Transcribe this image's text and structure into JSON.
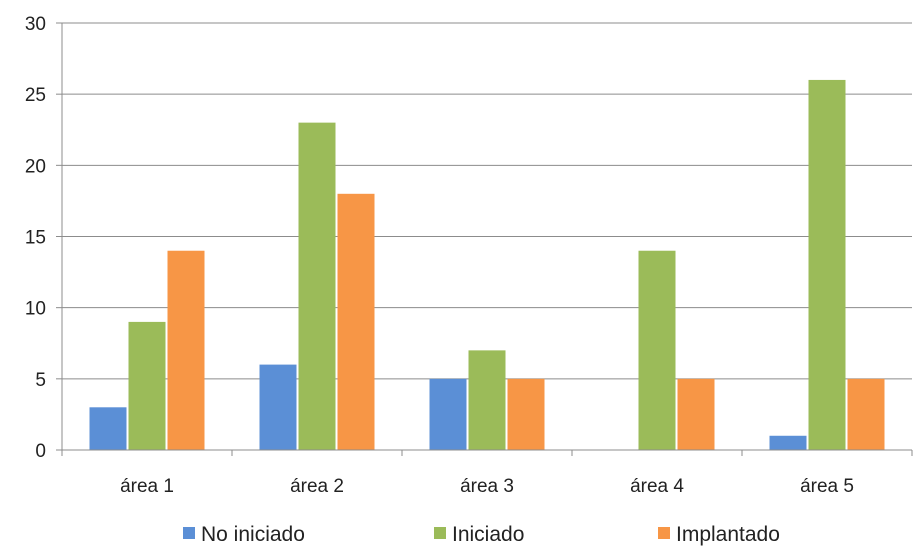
{
  "chart_data": {
    "type": "bar",
    "categories": [
      "área 1",
      "área 2",
      "área 3",
      "área 4",
      "área 5"
    ],
    "series": [
      {
        "name": "No iniciado",
        "color": "#5b8fd6",
        "values": [
          3,
          6,
          5,
          0,
          1
        ]
      },
      {
        "name": "Iniciado",
        "color": "#9bbb59",
        "values": [
          9,
          23,
          7,
          14,
          26
        ]
      },
      {
        "name": "Implantado",
        "color": "#f79646",
        "values": [
          14,
          18,
          5,
          5,
          5
        ]
      }
    ],
    "ylim": [
      0,
      30
    ],
    "yticks": [
      0,
      5,
      10,
      15,
      20,
      25,
      30
    ],
    "grid": true,
    "legend": "bottom",
    "title": "",
    "xlabel": "",
    "ylabel": ""
  }
}
